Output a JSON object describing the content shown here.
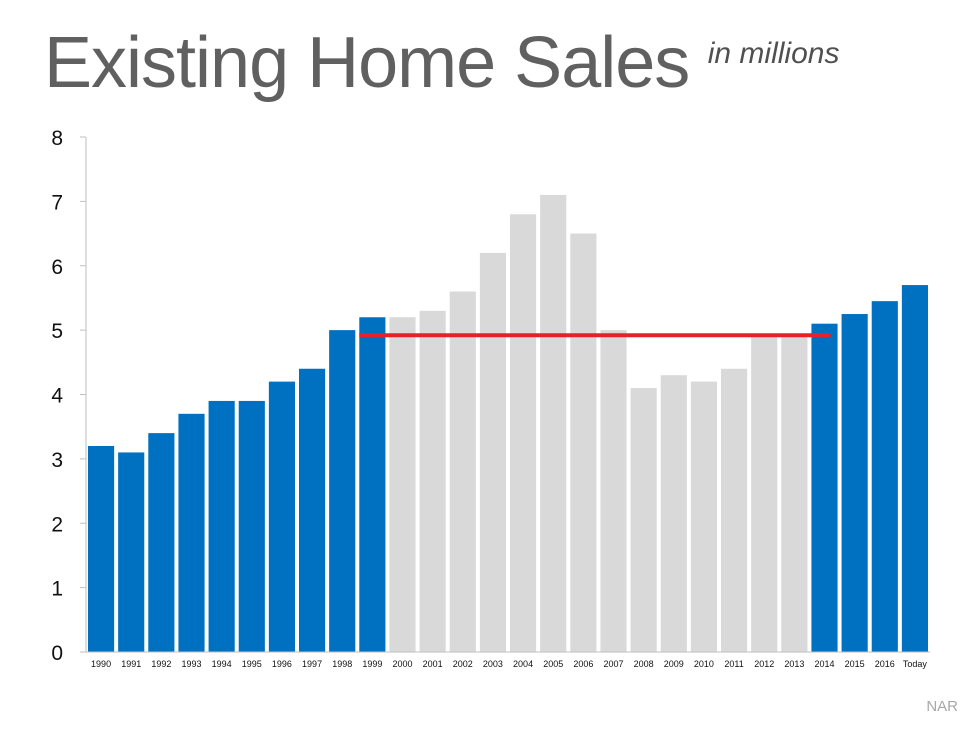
{
  "header": {
    "title": "Existing Home Sales",
    "subtitle": "in millions"
  },
  "footer": {
    "source": "NAR"
  },
  "colors": {
    "highlight": "#0070C0",
    "muted": "#D9D9D9",
    "reference_line": "#E8202A",
    "axis": "#bfbfbf"
  },
  "chart_data": {
    "type": "bar",
    "title": "Existing Home Sales",
    "subtitle": "in millions",
    "xlabel": "",
    "ylabel": "",
    "ylim": [
      0,
      8
    ],
    "yticks": [
      0,
      1,
      2,
      3,
      4,
      5,
      6,
      7,
      8
    ],
    "grid": false,
    "categories": [
      "1990",
      "1991",
      "1992",
      "1993",
      "1994",
      "1995",
      "1996",
      "1997",
      "1998",
      "1999",
      "2000",
      "2001",
      "2002",
      "2003",
      "2004",
      "2005",
      "2006",
      "2007",
      "2008",
      "2009",
      "2010",
      "2011",
      "2012",
      "2013",
      "2014",
      "2015",
      "2016",
      "Today"
    ],
    "values": [
      3.2,
      3.1,
      3.4,
      3.7,
      3.9,
      3.9,
      4.2,
      4.4,
      5.0,
      5.2,
      5.2,
      5.3,
      5.6,
      6.2,
      6.8,
      7.1,
      6.5,
      5.0,
      4.1,
      4.3,
      4.2,
      4.4,
      4.9,
      4.9,
      5.1,
      5.25,
      5.45,
      5.7
    ],
    "highlighted": [
      true,
      true,
      true,
      true,
      true,
      true,
      true,
      true,
      true,
      true,
      false,
      false,
      false,
      false,
      false,
      false,
      false,
      false,
      false,
      false,
      false,
      false,
      false,
      false,
      true,
      true,
      true,
      true
    ],
    "reference_line": {
      "value": 4.92,
      "from": "1999",
      "to": "2014"
    }
  }
}
